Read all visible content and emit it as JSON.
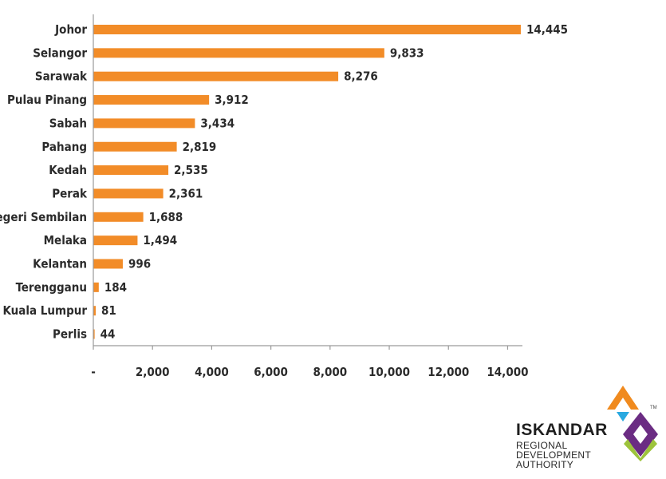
{
  "chart_data": {
    "type": "bar",
    "orientation": "horizontal",
    "categories": [
      "Johor",
      "Selangor",
      "Sarawak",
      "Pulau Pinang",
      "Sabah",
      "Pahang",
      "Kedah",
      "Perak",
      "Negeri Sembilan",
      "Melaka",
      "Kelantan",
      "Terengganu",
      "Kuala Lumpur",
      "Perlis"
    ],
    "values": [
      14445,
      9833,
      8276,
      3912,
      3434,
      2819,
      2535,
      2361,
      1688,
      1494,
      996,
      184,
      81,
      44
    ],
    "value_labels": [
      "14,445",
      "9,833",
      "8,276",
      "3,912",
      "3,434",
      "2,819",
      "2,535",
      "2,361",
      "1,688",
      "1,494",
      "996",
      "184",
      "81",
      "44"
    ],
    "x_ticks": [
      0,
      2000,
      4000,
      6000,
      8000,
      10000,
      12000,
      14000
    ],
    "x_tick_labels": [
      "-",
      "2,000",
      "4,000",
      "6,000",
      "8,000",
      "10,000",
      "12,000",
      "14,000"
    ],
    "xlim": [
      0,
      14500
    ],
    "title": "",
    "xlabel": "",
    "ylabel": "",
    "grid": false,
    "bar_color": "#F28C28"
  },
  "logo": {
    "name": "ISKANDAR",
    "lines": [
      "REGIONAL",
      "DEVELOPMENT",
      "AUTHORITY"
    ],
    "tm": "TM",
    "colors": {
      "orange": "#F08A1E",
      "blue": "#2AA9E0",
      "purple": "#6B2C83",
      "green": "#9DC33B"
    }
  }
}
